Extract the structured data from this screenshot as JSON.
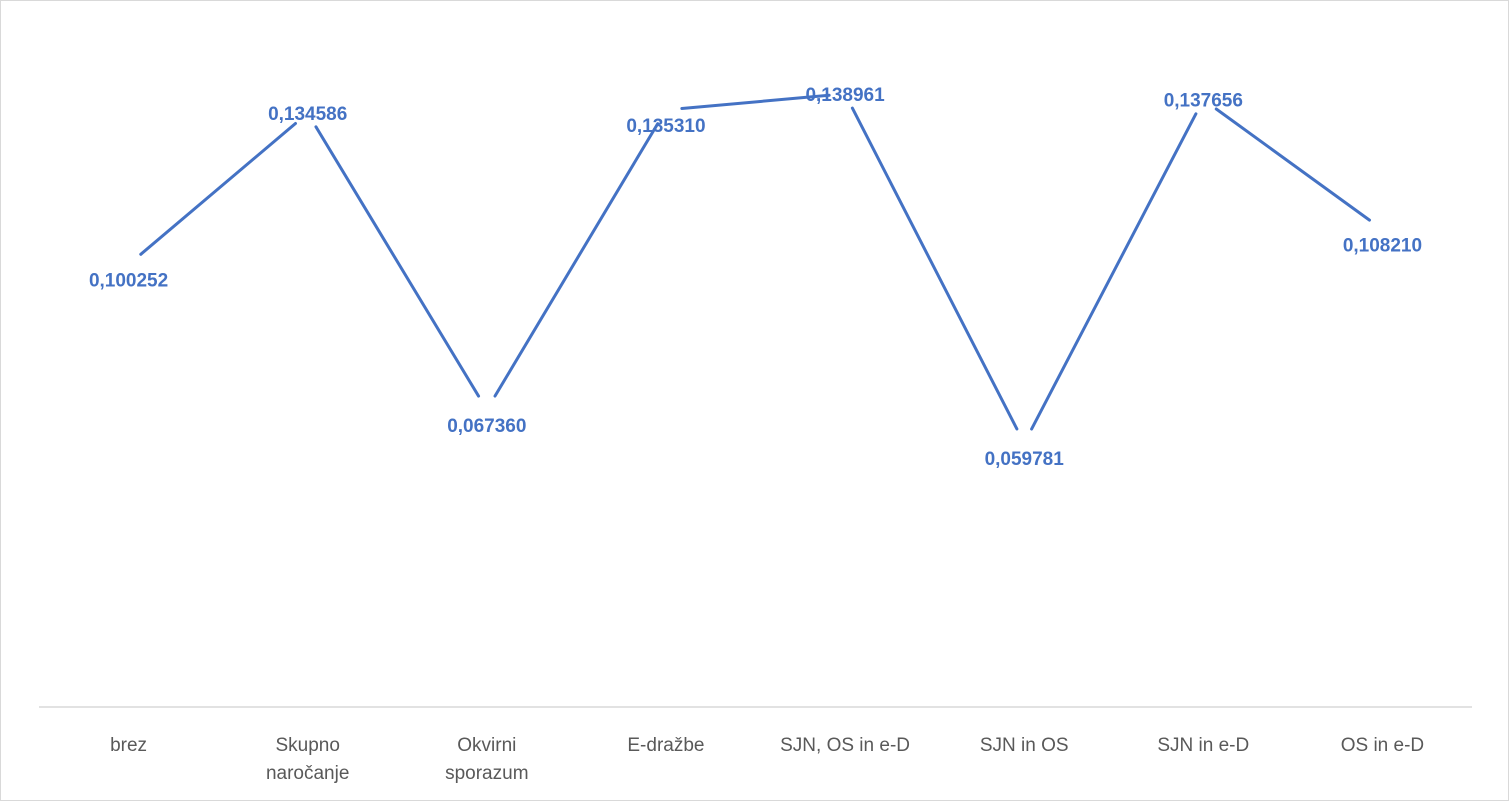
{
  "chart_data": {
    "type": "line",
    "categories": [
      "brez",
      "Skupno naročanje",
      "Okvirni sporazum",
      "E-dražbe",
      "SJN, OS in e-D",
      "SJN in OS",
      "SJN in e-D",
      "OS in e-D"
    ],
    "category_lines": [
      [
        "brez"
      ],
      [
        "Skupno",
        "naročanje"
      ],
      [
        "Okvirni",
        "sporazum"
      ],
      [
        "E-dražbe"
      ],
      [
        "SJN, OS in e-D"
      ],
      [
        "SJN in OS"
      ],
      [
        "SJN in e-D"
      ],
      [
        "OS in e-D"
      ]
    ],
    "values": [
      0.100252,
      0.134586,
      0.06736,
      0.13531,
      0.138961,
      0.059781,
      0.137656,
      0.10821
    ],
    "data_labels": [
      "0,100252",
      "0,134586",
      "0,067360",
      "0,135310",
      "0,138961",
      "0,059781",
      "0,137656",
      "0,108210"
    ],
    "title": "",
    "xlabel": "",
    "ylabel": "",
    "ylim": [
      0,
      0.16
    ],
    "grid": false,
    "legend": "none",
    "line_color": "#4472c4",
    "label_color": "#4472c4"
  }
}
